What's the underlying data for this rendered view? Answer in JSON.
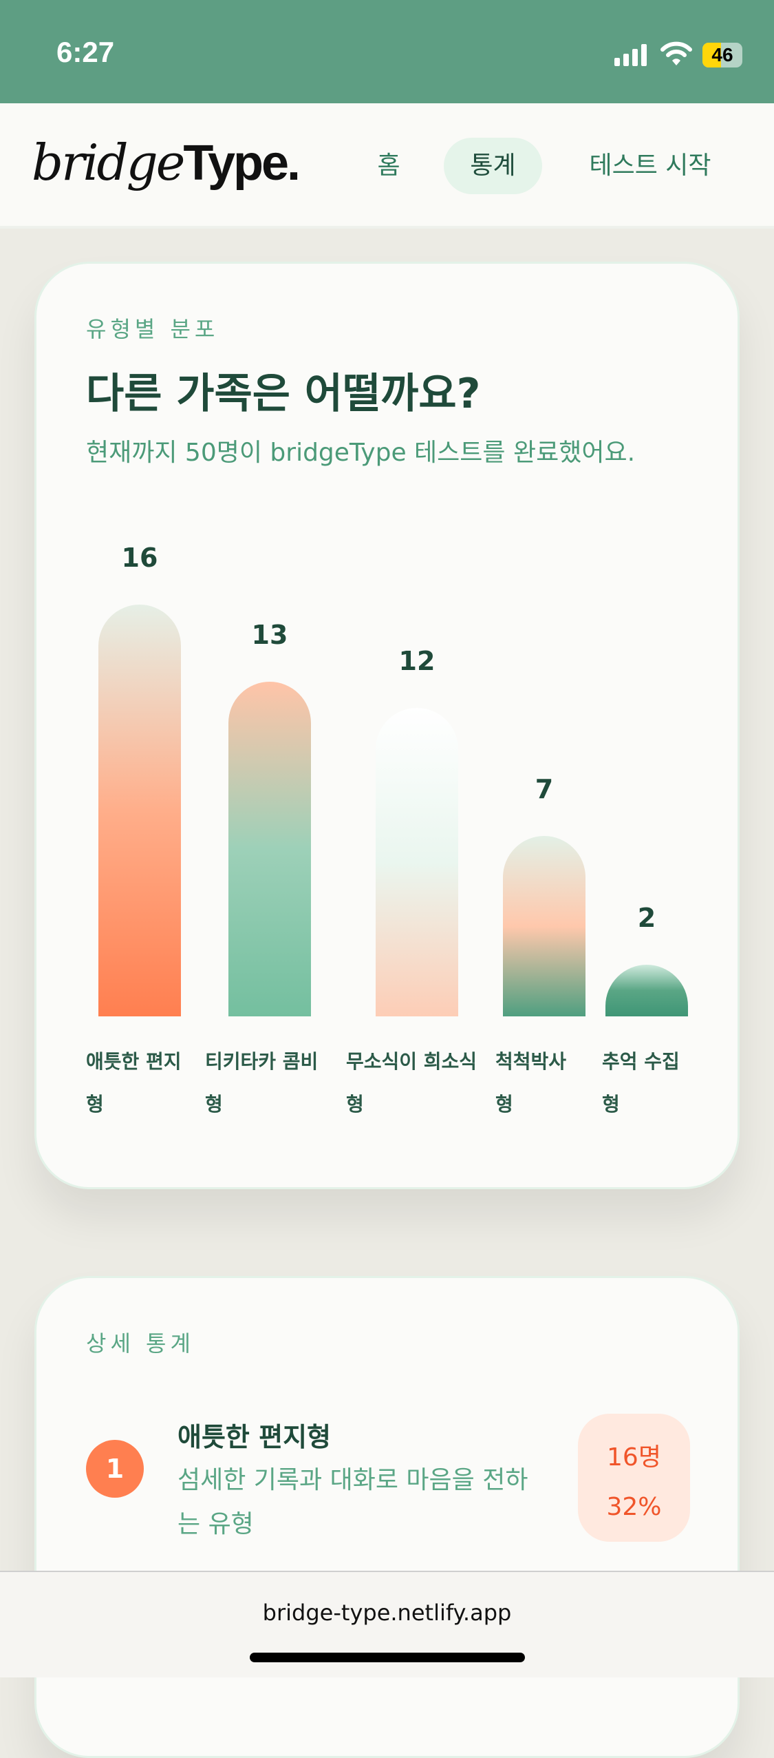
{
  "status": {
    "time": "6:27",
    "battery": "46",
    "battery_level": 46
  },
  "header": {
    "logo": "bridgeType.",
    "logo_parts": [
      "bridge",
      "Type."
    ],
    "nav": [
      {
        "label": "홈",
        "active": false
      },
      {
        "label": "통계",
        "active": true
      },
      {
        "label": "테스트 시작",
        "active": false
      }
    ]
  },
  "distribution": {
    "eyebrow": "유형별 분포",
    "title": "다른 가족은 어떨까요?",
    "subtitle": "현재까지 50명이 bridgeType 테스트를 완료했어요."
  },
  "chart_data": {
    "type": "bar",
    "categories": [
      "애틋한 편지형",
      "티키타카 콤비형",
      "무소식이 희소식형",
      "척척박사형",
      "추억 수집형"
    ],
    "label_lines": [
      [
        "애틋한 편지",
        "형"
      ],
      [
        "티키타카 콤비",
        "형"
      ],
      [
        "무소식이 희소식",
        "형"
      ],
      [
        "척척박사",
        "형"
      ],
      [
        "추억 수집",
        "형"
      ]
    ],
    "values": [
      16,
      13,
      12,
      7,
      2
    ],
    "ylim": [
      0,
      16
    ],
    "grid": false,
    "colors": [
      [
        "#e6efe6",
        "#ffae8a",
        "#ff7f50"
      ],
      [
        "#ffc4a8",
        "#9dd0b8",
        "#74bf9f"
      ],
      [
        "#ffffff",
        "#eaf6ef",
        "#fdcdb6"
      ],
      [
        "#e3f0e6",
        "#ffc8ac",
        "#4f9f80"
      ],
      [
        "#cfeadd",
        "#5aa685",
        "#3f9676"
      ]
    ]
  },
  "details": {
    "eyebrow": "상세 통계",
    "items": [
      {
        "rank": "1",
        "name": "애틋한 편지형",
        "desc": "섬세한 기록과 대화로 마음을 전하는 유형",
        "count": "16명",
        "percent": "32%"
      }
    ]
  },
  "browser": {
    "url": "bridge-type.netlify.app"
  }
}
